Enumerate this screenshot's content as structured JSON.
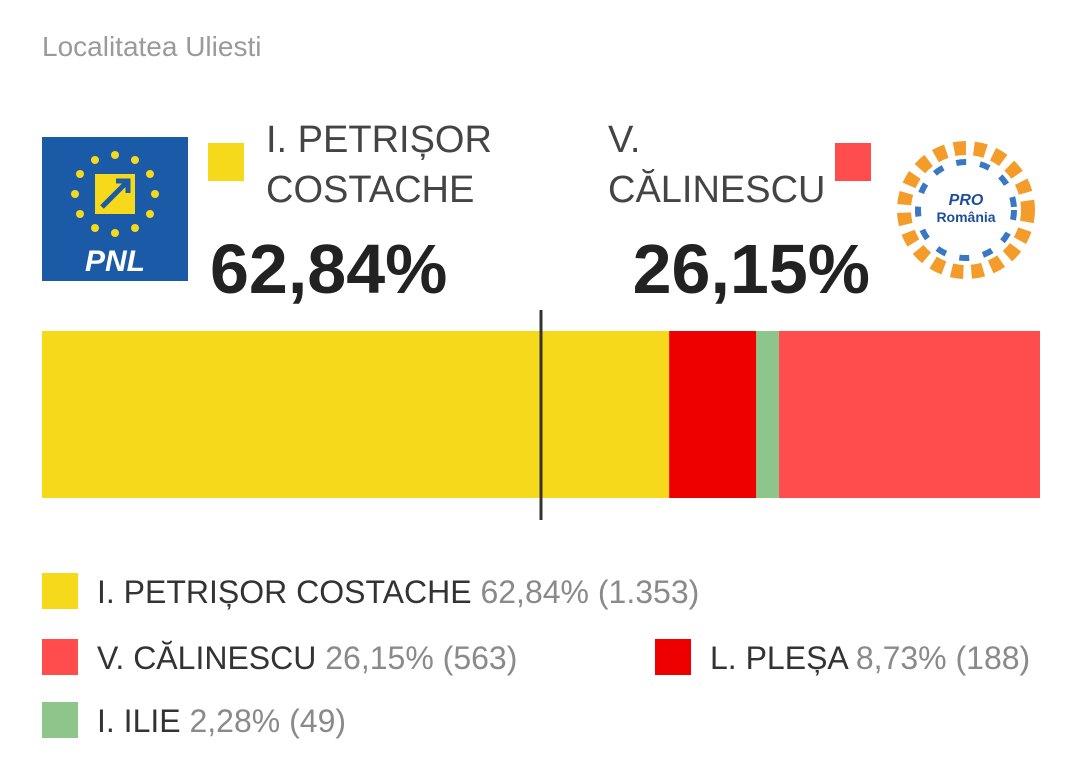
{
  "chart_data": {
    "type": "stacked-bar",
    "title": "Localitatea Uliesti",
    "xlim": [
      0,
      100
    ],
    "series": [
      {
        "name": "I. PETRIȘOR COSTACHE",
        "color": "#f5d91a",
        "values": [
          62.84
        ],
        "value_labels": [
          "62,84%"
        ],
        "votes": 1353,
        "votes_label": "(1.353)"
      },
      {
        "name": "L. PLEȘA",
        "color": "#ee0000",
        "values": [
          8.73
        ],
        "value_labels": [
          "8,73%"
        ],
        "votes": 188,
        "votes_label": "(188)"
      },
      {
        "name": "I. ILIE",
        "color": "#8dc58b",
        "values": [
          2.28
        ],
        "value_labels": [
          "2,28%"
        ],
        "votes": 49,
        "votes_label": "(49)"
      },
      {
        "name": "V. CĂLINESCU",
        "color": "#ff4d4d",
        "values": [
          26.15
        ],
        "value_labels": [
          "26,15%"
        ],
        "votes": 563,
        "votes_label": "(563)"
      }
    ],
    "headline": [
      {
        "name_lines": [
          "I. PETRIȘOR",
          "COSTACHE"
        ],
        "value": 62.84,
        "value_label": "62,84%",
        "logo": "PNL"
      },
      {
        "name_lines": [
          "V.",
          "CĂLINESCU"
        ],
        "value": 26.15,
        "value_label": "26,15%",
        "logo_lines": [
          "PRO",
          "România"
        ]
      }
    ]
  }
}
